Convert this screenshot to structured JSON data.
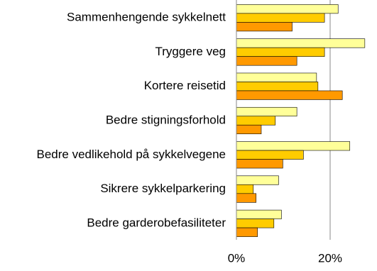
{
  "chart_data": {
    "type": "hbar",
    "categories": [
      "Sammenhengende sykkelnett",
      "Tryggere veg",
      "Kortere reisetid",
      "Bedre stigningsforhold",
      "Bedre vedlikehold på sykkelvegene",
      "Sikrere sykkelparkering",
      "Bedre garderobefasiliteter"
    ],
    "series": [
      {
        "color": "#ffff99",
        "values": [
          21.7,
          27.4,
          17.1,
          12.9,
          24.2,
          9.0,
          9.6
        ]
      },
      {
        "color": "#ffcc00",
        "values": [
          18.8,
          18.8,
          17.4,
          8.3,
          14.3,
          3.6,
          8.0
        ]
      },
      {
        "color": "#ff9900",
        "values": [
          11.9,
          12.9,
          22.6,
          5.3,
          9.9,
          4.2,
          4.5
        ]
      }
    ],
    "xlim": [
      0,
      30
    ],
    "xticks": [
      {
        "value": 0,
        "label": "0%"
      },
      {
        "value": 20,
        "label": "20%"
      }
    ],
    "grid": true
  }
}
